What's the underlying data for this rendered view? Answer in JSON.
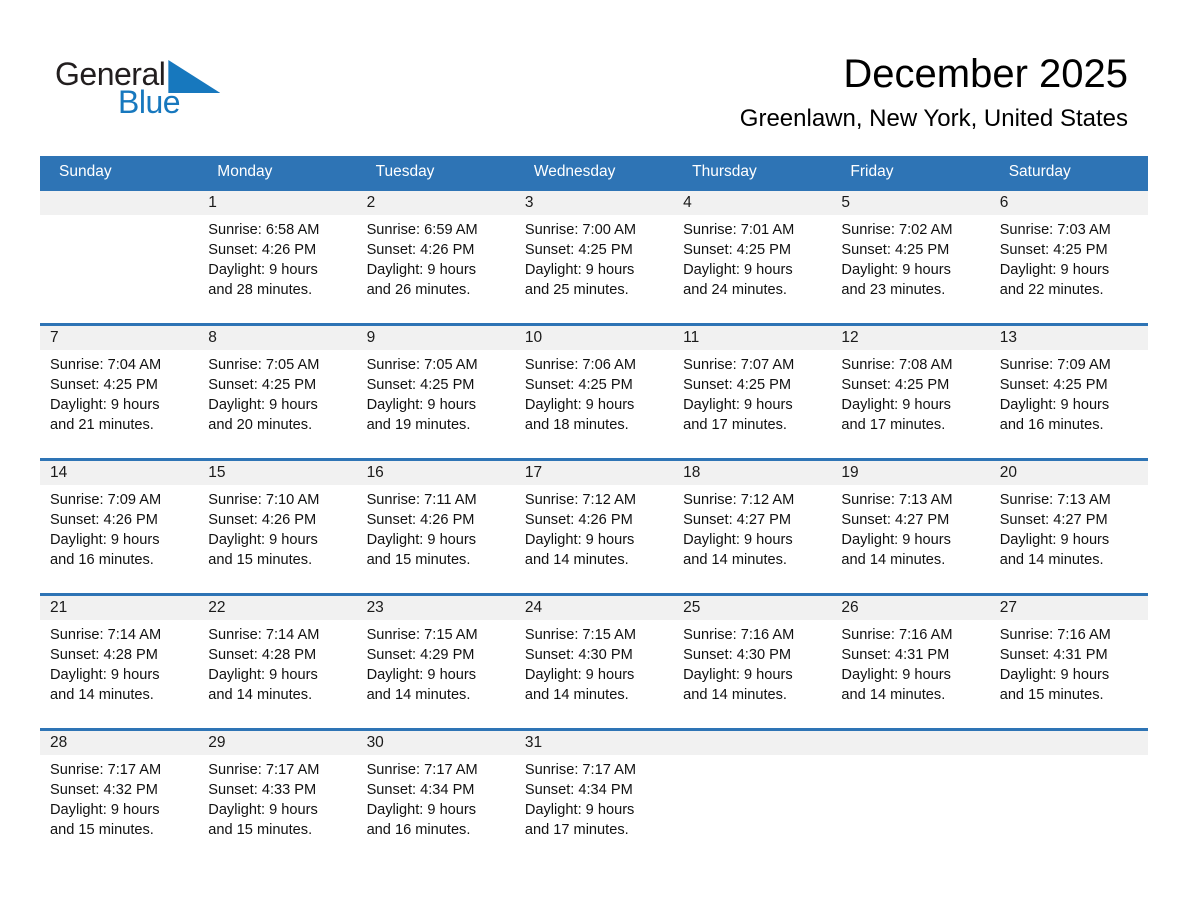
{
  "logo": {
    "word1": "General",
    "word2": "Blue"
  },
  "header": {
    "title": "December 2025",
    "subtitle": "Greenlawn, New York, United States"
  },
  "colors": {
    "header_blue": "#2e74b5",
    "row_separator_blue": "#2e74b5",
    "number_strip_gray": "#f1f1f1",
    "logo_blue": "#1778be",
    "header_text": "#ffffff"
  },
  "calendar": {
    "day_headers": [
      "Sunday",
      "Monday",
      "Tuesday",
      "Wednesday",
      "Thursday",
      "Friday",
      "Saturday"
    ],
    "weeks": [
      {
        "days": [
          {
            "date": "",
            "sunrise": "",
            "sunset": "",
            "daylight1": "",
            "daylight2": ""
          },
          {
            "date": "1",
            "sunrise": "Sunrise: 6:58 AM",
            "sunset": "Sunset: 4:26 PM",
            "daylight1": "Daylight: 9 hours",
            "daylight2": "and 28 minutes."
          },
          {
            "date": "2",
            "sunrise": "Sunrise: 6:59 AM",
            "sunset": "Sunset: 4:26 PM",
            "daylight1": "Daylight: 9 hours",
            "daylight2": "and 26 minutes."
          },
          {
            "date": "3",
            "sunrise": "Sunrise: 7:00 AM",
            "sunset": "Sunset: 4:25 PM",
            "daylight1": "Daylight: 9 hours",
            "daylight2": "and 25 minutes."
          },
          {
            "date": "4",
            "sunrise": "Sunrise: 7:01 AM",
            "sunset": "Sunset: 4:25 PM",
            "daylight1": "Daylight: 9 hours",
            "daylight2": "and 24 minutes."
          },
          {
            "date": "5",
            "sunrise": "Sunrise: 7:02 AM",
            "sunset": "Sunset: 4:25 PM",
            "daylight1": "Daylight: 9 hours",
            "daylight2": "and 23 minutes."
          },
          {
            "date": "6",
            "sunrise": "Sunrise: 7:03 AM",
            "sunset": "Sunset: 4:25 PM",
            "daylight1": "Daylight: 9 hours",
            "daylight2": "and 22 minutes."
          }
        ]
      },
      {
        "days": [
          {
            "date": "7",
            "sunrise": "Sunrise: 7:04 AM",
            "sunset": "Sunset: 4:25 PM",
            "daylight1": "Daylight: 9 hours",
            "daylight2": "and 21 minutes."
          },
          {
            "date": "8",
            "sunrise": "Sunrise: 7:05 AM",
            "sunset": "Sunset: 4:25 PM",
            "daylight1": "Daylight: 9 hours",
            "daylight2": "and 20 minutes."
          },
          {
            "date": "9",
            "sunrise": "Sunrise: 7:05 AM",
            "sunset": "Sunset: 4:25 PM",
            "daylight1": "Daylight: 9 hours",
            "daylight2": "and 19 minutes."
          },
          {
            "date": "10",
            "sunrise": "Sunrise: 7:06 AM",
            "sunset": "Sunset: 4:25 PM",
            "daylight1": "Daylight: 9 hours",
            "daylight2": "and 18 minutes."
          },
          {
            "date": "11",
            "sunrise": "Sunrise: 7:07 AM",
            "sunset": "Sunset: 4:25 PM",
            "daylight1": "Daylight: 9 hours",
            "daylight2": "and 17 minutes."
          },
          {
            "date": "12",
            "sunrise": "Sunrise: 7:08 AM",
            "sunset": "Sunset: 4:25 PM",
            "daylight1": "Daylight: 9 hours",
            "daylight2": "and 17 minutes."
          },
          {
            "date": "13",
            "sunrise": "Sunrise: 7:09 AM",
            "sunset": "Sunset: 4:25 PM",
            "daylight1": "Daylight: 9 hours",
            "daylight2": "and 16 minutes."
          }
        ]
      },
      {
        "days": [
          {
            "date": "14",
            "sunrise": "Sunrise: 7:09 AM",
            "sunset": "Sunset: 4:26 PM",
            "daylight1": "Daylight: 9 hours",
            "daylight2": "and 16 minutes."
          },
          {
            "date": "15",
            "sunrise": "Sunrise: 7:10 AM",
            "sunset": "Sunset: 4:26 PM",
            "daylight1": "Daylight: 9 hours",
            "daylight2": "and 15 minutes."
          },
          {
            "date": "16",
            "sunrise": "Sunrise: 7:11 AM",
            "sunset": "Sunset: 4:26 PM",
            "daylight1": "Daylight: 9 hours",
            "daylight2": "and 15 minutes."
          },
          {
            "date": "17",
            "sunrise": "Sunrise: 7:12 AM",
            "sunset": "Sunset: 4:26 PM",
            "daylight1": "Daylight: 9 hours",
            "daylight2": "and 14 minutes."
          },
          {
            "date": "18",
            "sunrise": "Sunrise: 7:12 AM",
            "sunset": "Sunset: 4:27 PM",
            "daylight1": "Daylight: 9 hours",
            "daylight2": "and 14 minutes."
          },
          {
            "date": "19",
            "sunrise": "Sunrise: 7:13 AM",
            "sunset": "Sunset: 4:27 PM",
            "daylight1": "Daylight: 9 hours",
            "daylight2": "and 14 minutes."
          },
          {
            "date": "20",
            "sunrise": "Sunrise: 7:13 AM",
            "sunset": "Sunset: 4:27 PM",
            "daylight1": "Daylight: 9 hours",
            "daylight2": "and 14 minutes."
          }
        ]
      },
      {
        "days": [
          {
            "date": "21",
            "sunrise": "Sunrise: 7:14 AM",
            "sunset": "Sunset: 4:28 PM",
            "daylight1": "Daylight: 9 hours",
            "daylight2": "and 14 minutes."
          },
          {
            "date": "22",
            "sunrise": "Sunrise: 7:14 AM",
            "sunset": "Sunset: 4:28 PM",
            "daylight1": "Daylight: 9 hours",
            "daylight2": "and 14 minutes."
          },
          {
            "date": "23",
            "sunrise": "Sunrise: 7:15 AM",
            "sunset": "Sunset: 4:29 PM",
            "daylight1": "Daylight: 9 hours",
            "daylight2": "and 14 minutes."
          },
          {
            "date": "24",
            "sunrise": "Sunrise: 7:15 AM",
            "sunset": "Sunset: 4:30 PM",
            "daylight1": "Daylight: 9 hours",
            "daylight2": "and 14 minutes."
          },
          {
            "date": "25",
            "sunrise": "Sunrise: 7:16 AM",
            "sunset": "Sunset: 4:30 PM",
            "daylight1": "Daylight: 9 hours",
            "daylight2": "and 14 minutes."
          },
          {
            "date": "26",
            "sunrise": "Sunrise: 7:16 AM",
            "sunset": "Sunset: 4:31 PM",
            "daylight1": "Daylight: 9 hours",
            "daylight2": "and 14 minutes."
          },
          {
            "date": "27",
            "sunrise": "Sunrise: 7:16 AM",
            "sunset": "Sunset: 4:31 PM",
            "daylight1": "Daylight: 9 hours",
            "daylight2": "and 15 minutes."
          }
        ]
      },
      {
        "days": [
          {
            "date": "28",
            "sunrise": "Sunrise: 7:17 AM",
            "sunset": "Sunset: 4:32 PM",
            "daylight1": "Daylight: 9 hours",
            "daylight2": "and 15 minutes."
          },
          {
            "date": "29",
            "sunrise": "Sunrise: 7:17 AM",
            "sunset": "Sunset: 4:33 PM",
            "daylight1": "Daylight: 9 hours",
            "daylight2": "and 15 minutes."
          },
          {
            "date": "30",
            "sunrise": "Sunrise: 7:17 AM",
            "sunset": "Sunset: 4:34 PM",
            "daylight1": "Daylight: 9 hours",
            "daylight2": "and 16 minutes."
          },
          {
            "date": "31",
            "sunrise": "Sunrise: 7:17 AM",
            "sunset": "Sunset: 4:34 PM",
            "daylight1": "Daylight: 9 hours",
            "daylight2": "and 17 minutes."
          },
          {
            "date": "",
            "sunrise": "",
            "sunset": "",
            "daylight1": "",
            "daylight2": ""
          },
          {
            "date": "",
            "sunrise": "",
            "sunset": "",
            "daylight1": "",
            "daylight2": ""
          },
          {
            "date": "",
            "sunrise": "",
            "sunset": "",
            "daylight1": "",
            "daylight2": ""
          }
        ]
      }
    ]
  }
}
